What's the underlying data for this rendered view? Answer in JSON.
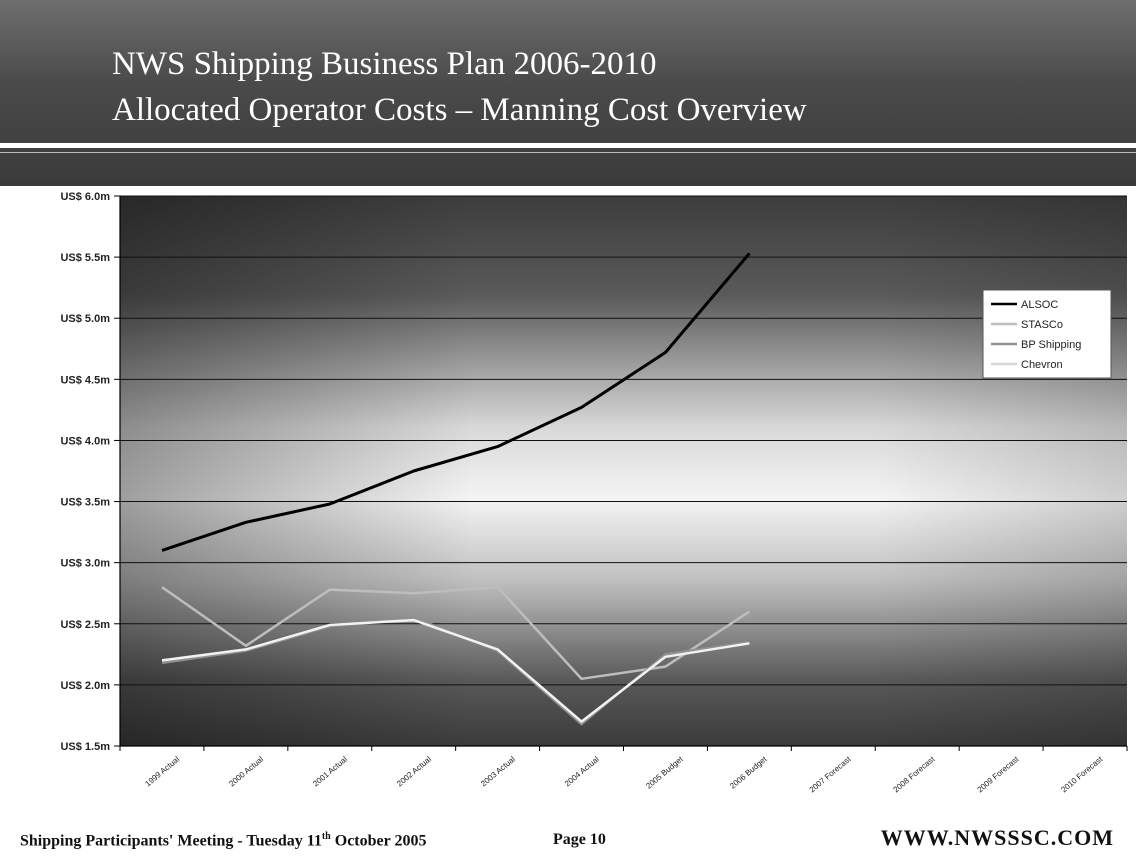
{
  "slide": {
    "title_line1": "NWS Shipping Business Plan 2006-2010",
    "title_line2": "Allocated Operator Costs – Manning Cost Overview"
  },
  "footer": {
    "meeting_prefix": "Shipping Participants' Meeting - Tuesday 11",
    "meeting_sup": "th",
    "meeting_suffix": " October 2005",
    "page": "Page 10",
    "url": "WWW.NWSSSC.COM"
  },
  "chart_data": {
    "type": "line",
    "title": "",
    "xlabel": "",
    "ylabel": "",
    "categories": [
      "1999 Actual",
      "2000 Actual",
      "2001 Actual",
      "2002 Actual",
      "2003 Actual",
      "2004 Actual",
      "2005 Budget",
      "2006 Budget",
      "2007 Forecast",
      "2008 Forecast",
      "2009 Forecast",
      "2010 Forecast"
    ],
    "ylim": [
      1.5,
      6.0
    ],
    "y_ticks": [
      1.5,
      2.0,
      2.5,
      3.0,
      3.5,
      4.0,
      4.5,
      5.0,
      5.5,
      6.0
    ],
    "y_tick_labels": [
      "US$ 1.5m",
      "US$ 2.0m",
      "US$ 2.5m",
      "US$ 3.0m",
      "US$ 3.5m",
      "US$ 4.0m",
      "US$ 4.5m",
      "US$ 5.0m",
      "US$ 5.5m",
      "US$ 6.0m"
    ],
    "grid": true,
    "legend_position": "right",
    "series": [
      {
        "name": "ALSOC",
        "color": "#000000",
        "values": [
          3.1,
          3.33,
          3.48,
          3.75,
          3.95,
          4.27,
          4.72,
          5.53,
          null,
          null,
          null,
          null
        ]
      },
      {
        "name": "STASCo",
        "color": "#bdbdbd",
        "values": [
          2.8,
          2.32,
          2.78,
          2.75,
          2.8,
          2.05,
          2.15,
          2.6,
          null,
          null,
          null,
          null
        ]
      },
      {
        "name": "BP Shipping",
        "color": "#909090",
        "values": [
          2.18,
          2.28,
          2.48,
          2.55,
          2.28,
          1.68,
          2.25,
          2.35,
          null,
          null,
          null,
          null
        ]
      },
      {
        "name": "Chevron",
        "color": "#f2f2f2",
        "values": [
          2.2,
          2.29,
          2.49,
          2.53,
          2.29,
          1.7,
          2.23,
          2.34,
          null,
          null,
          null,
          null
        ]
      }
    ]
  }
}
